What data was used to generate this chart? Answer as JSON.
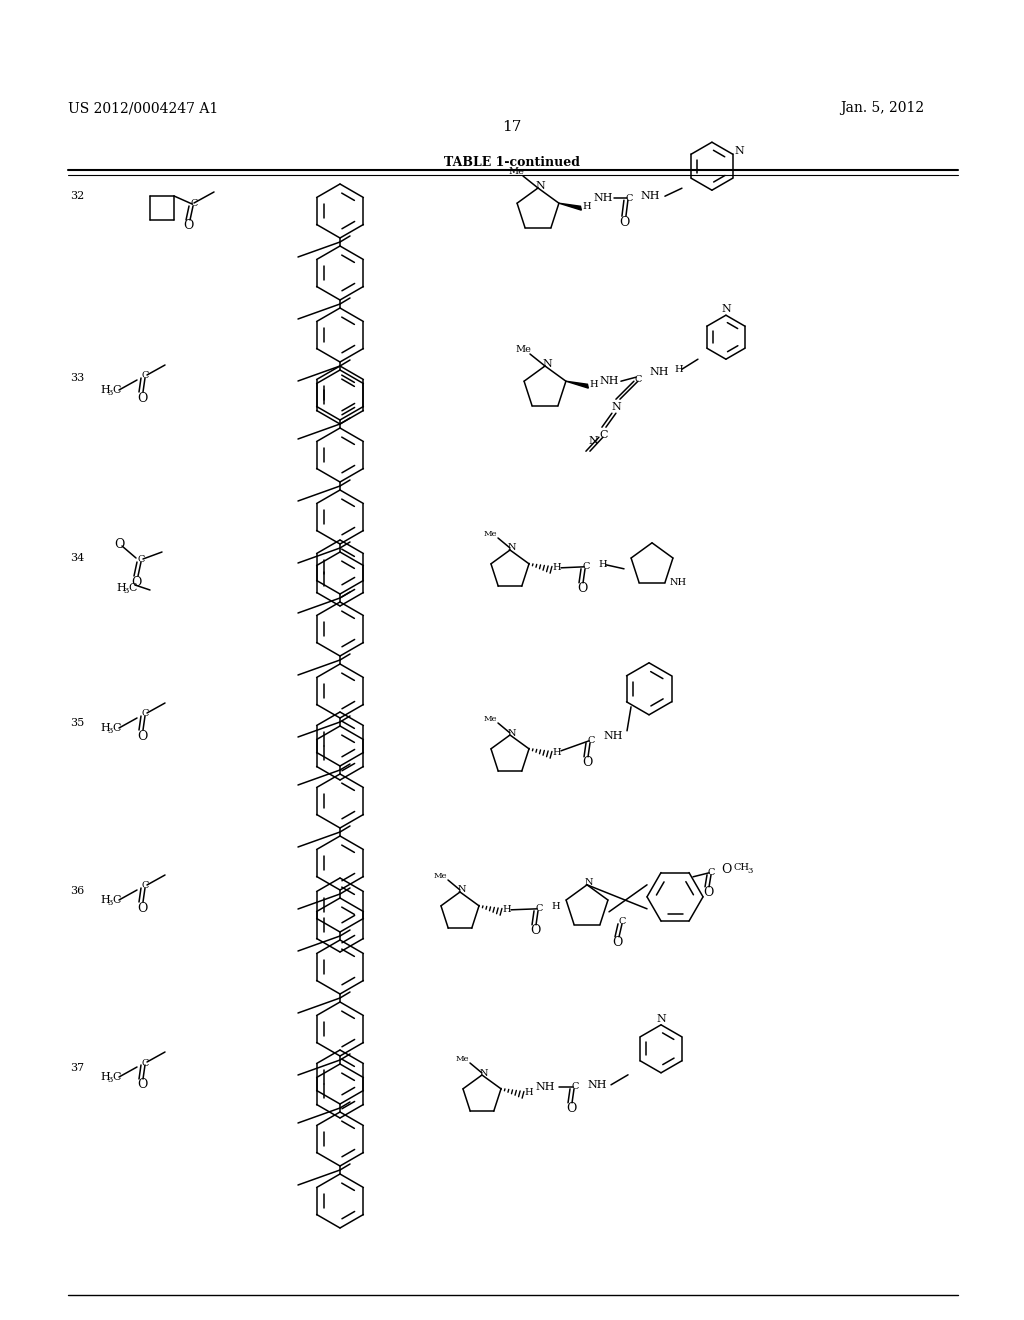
{
  "page_title_left": "US 2012/0004247 A1",
  "page_title_right": "Jan. 5, 2012",
  "page_number": "17",
  "table_title": "TABLE 1-continued",
  "background_color": "#ffffff",
  "row_numbers": [
    "32",
    "33",
    "34",
    "35",
    "36",
    "37"
  ],
  "row_y_tops": [
    183,
    365,
    545,
    710,
    878,
    1055
  ],
  "figsize": [
    10.24,
    13.2
  ],
  "dpi": 100
}
